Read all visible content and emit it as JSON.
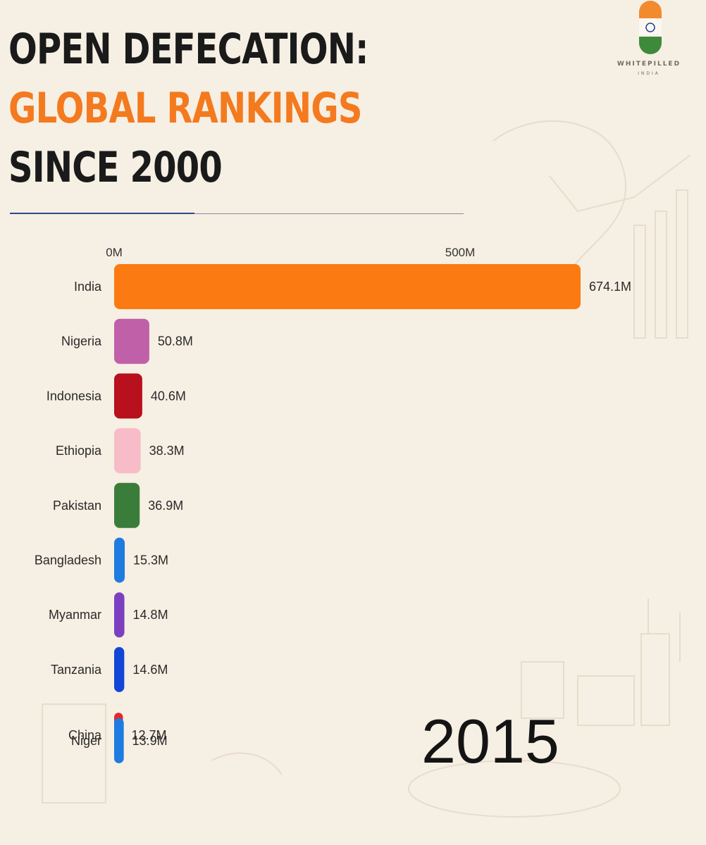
{
  "title": {
    "line1": "OPEN DEFECATION:",
    "line2": "GLOBAL RANKINGS",
    "line3": "SINCE 2000"
  },
  "brand": {
    "name": "WHITEPILLED",
    "sub": "INDIA"
  },
  "colors": {
    "background": "#f6efe3",
    "title_dark": "#1a1a1a",
    "title_accent": "#f47a1f"
  },
  "chart_data": {
    "type": "bar",
    "orientation": "horizontal",
    "title": "OPEN DEFECATION: GLOBAL RANKINGS SINCE 2000",
    "year_label": "2015",
    "xlim": [
      0,
      674.1
    ],
    "x_ticks": [
      {
        "value": 0,
        "label": "0M"
      },
      {
        "value": 500,
        "label": "500M"
      }
    ],
    "categories": [
      "India",
      "Nigeria",
      "Indonesia",
      "Ethiopia",
      "Pakistan",
      "Bangladesh",
      "Myanmar",
      "Tanzania",
      "China",
      "Niger"
    ],
    "values": [
      674.1,
      50.8,
      40.6,
      38.3,
      36.9,
      15.3,
      14.8,
      14.6,
      12.7,
      13.9
    ],
    "value_labels": [
      "674.1M",
      "50.8M",
      "40.6M",
      "38.3M",
      "36.9M",
      "15.3M",
      "14.8M",
      "14.6M",
      "12.7M",
      "13.9M"
    ],
    "colors": [
      "#fb7a12",
      "#c060a8",
      "#b8101c",
      "#f7bcc8",
      "#3a7d3a",
      "#1e7be0",
      "#7c3fc0",
      "#1246d6",
      "#e02a2a",
      "#1e7be0"
    ],
    "rank_positions": [
      1,
      2,
      3,
      4,
      5,
      6,
      7,
      8,
      9.2,
      9.3
    ]
  }
}
